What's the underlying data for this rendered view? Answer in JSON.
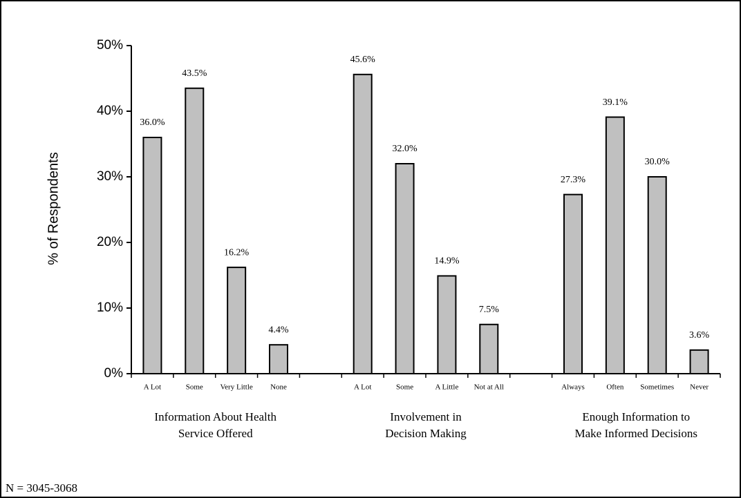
{
  "chart_data": {
    "type": "bar",
    "y_label": "% of Respondents",
    "categories": [
      "A Lot",
      "Some",
      "Very Little",
      "None",
      null,
      "A Lot",
      "Some",
      "A Little",
      "Not at All",
      null,
      "Always",
      "Often",
      "Sometimes",
      "Never"
    ],
    "values": [
      36.0,
      43.5,
      16.2,
      4.4,
      null,
      45.6,
      32.0,
      14.9,
      7.5,
      null,
      27.3,
      39.1,
      30.0,
      3.6
    ],
    "value_labels": [
      "36.0%",
      "43.5%",
      "16.2%",
      "4.4%",
      null,
      "45.6%",
      "32.0%",
      "14.9%",
      "7.5%",
      null,
      "27.3%",
      "39.1%",
      "30.0%",
      "3.6%"
    ],
    "group_labels": [
      [
        "Information About Health",
        "Service Offered"
      ],
      [
        "Involvement in",
        "Decision Making"
      ],
      [
        "Enough Information to",
        "Make Informed Decisions"
      ]
    ],
    "color": "#c0c0c0",
    "ylim": [
      0,
      50
    ],
    "yticks": [
      {
        "value": 0,
        "label": "0%"
      },
      {
        "value": 10,
        "label": "10%"
      },
      {
        "value": 20,
        "label": "20%"
      },
      {
        "value": 30,
        "label": "30%"
      },
      {
        "value": 40,
        "label": "40%"
      },
      {
        "value": 50,
        "label": "50%"
      }
    ],
    "note": "N = 3045-3068"
  }
}
